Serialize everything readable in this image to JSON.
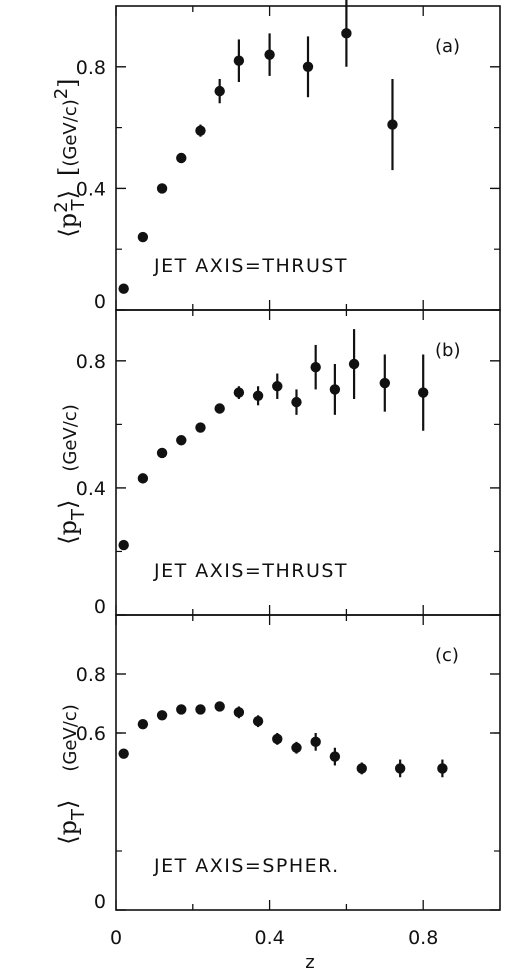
{
  "chart_data": [
    {
      "type": "scatter",
      "panel_label": "(a)",
      "annotation": "JET AXIS=THRUST",
      "ylabel": "⟨p_T²⟩ [(GeV/c)²]",
      "ylabel_parts": {
        "angle_l": "⟨",
        "p": "p",
        "sup": "2",
        "sub": "T",
        "angle_r": "⟩",
        "bracket_l": "[",
        "unit": "(GeV/c)",
        "unit_sup": "2",
        "bracket_r": "]"
      },
      "xlim": [
        0,
        1.0
      ],
      "ylim": [
        0,
        1.0
      ],
      "yticks": [
        0,
        0.4,
        0.8
      ],
      "ytick_labels": [
        "0",
        "0.4",
        "0.8"
      ],
      "series": [
        {
          "points": [
            {
              "x": 0.02,
              "y": 0.07,
              "err": 0
            },
            {
              "x": 0.07,
              "y": 0.24,
              "err": 0
            },
            {
              "x": 0.12,
              "y": 0.4,
              "err": 0
            },
            {
              "x": 0.17,
              "y": 0.5,
              "err": 0
            },
            {
              "x": 0.22,
              "y": 0.59,
              "err": 0.02
            },
            {
              "x": 0.27,
              "y": 0.72,
              "err": 0.04
            },
            {
              "x": 0.32,
              "y": 0.82,
              "err": 0.07
            },
            {
              "x": 0.4,
              "y": 0.84,
              "err": 0.07
            },
            {
              "x": 0.5,
              "y": 0.8,
              "err": 0.1
            },
            {
              "x": 0.6,
              "y": 0.91,
              "err": 0.11
            },
            {
              "x": 0.72,
              "y": 0.61,
              "err": 0.15
            }
          ]
        }
      ]
    },
    {
      "type": "scatter",
      "panel_label": "(b)",
      "annotation": "JET AXIS=THRUST",
      "ylabel": "⟨p_T⟩ (GeV/c)",
      "ylabel_parts": {
        "angle_l": "⟨",
        "p": "p",
        "sub": "T",
        "angle_r": "⟩",
        "unit": "(GeV/c)"
      },
      "xlim": [
        0,
        1.0
      ],
      "ylim": [
        0,
        0.96
      ],
      "yticks": [
        0,
        0.4,
        0.8
      ],
      "ytick_labels": [
        "0",
        "0.4",
        "0.8"
      ],
      "series": [
        {
          "points": [
            {
              "x": 0.02,
              "y": 0.22,
              "err": 0
            },
            {
              "x": 0.07,
              "y": 0.43,
              "err": 0
            },
            {
              "x": 0.12,
              "y": 0.51,
              "err": 0
            },
            {
              "x": 0.17,
              "y": 0.55,
              "err": 0
            },
            {
              "x": 0.22,
              "y": 0.59,
              "err": 0
            },
            {
              "x": 0.27,
              "y": 0.65,
              "err": 0
            },
            {
              "x": 0.32,
              "y": 0.7,
              "err": 0.02
            },
            {
              "x": 0.37,
              "y": 0.69,
              "err": 0.03
            },
            {
              "x": 0.42,
              "y": 0.72,
              "err": 0.04
            },
            {
              "x": 0.47,
              "y": 0.67,
              "err": 0.04
            },
            {
              "x": 0.52,
              "y": 0.78,
              "err": 0.07
            },
            {
              "x": 0.57,
              "y": 0.71,
              "err": 0.08
            },
            {
              "x": 0.62,
              "y": 0.79,
              "err": 0.11
            },
            {
              "x": 0.7,
              "y": 0.73,
              "err": 0.09
            },
            {
              "x": 0.8,
              "y": 0.7,
              "err": 0.12
            }
          ]
        }
      ]
    },
    {
      "type": "scatter",
      "panel_label": "(c)",
      "annotation": "JET AXIS=SPHER.",
      "ylabel": "⟨p_T⟩ (GeV/c)",
      "ylabel_parts": {
        "angle_l": "⟨",
        "p": "p",
        "sub": "T",
        "angle_r": "⟩",
        "unit": "(GeV/c)"
      },
      "xlabel": "z",
      "xlim": [
        0,
        1.0
      ],
      "ylim": [
        0,
        1.0
      ],
      "xticks": [
        0,
        0.4,
        0.8
      ],
      "xtick_labels": [
        "0",
        "0.4",
        "0.8"
      ],
      "yticks": [
        0,
        0.6,
        0.8
      ],
      "ytick_labels": [
        "0",
        "0.6",
        "0.8"
      ],
      "series": [
        {
          "points": [
            {
              "x": 0.02,
              "y": 0.53,
              "err": 0
            },
            {
              "x": 0.07,
              "y": 0.63,
              "err": 0
            },
            {
              "x": 0.12,
              "y": 0.66,
              "err": 0
            },
            {
              "x": 0.17,
              "y": 0.68,
              "err": 0
            },
            {
              "x": 0.22,
              "y": 0.68,
              "err": 0
            },
            {
              "x": 0.27,
              "y": 0.69,
              "err": 0.01
            },
            {
              "x": 0.32,
              "y": 0.67,
              "err": 0.02
            },
            {
              "x": 0.37,
              "y": 0.64,
              "err": 0.02
            },
            {
              "x": 0.42,
              "y": 0.58,
              "err": 0.02
            },
            {
              "x": 0.47,
              "y": 0.55,
              "err": 0.02
            },
            {
              "x": 0.52,
              "y": 0.57,
              "err": 0.03
            },
            {
              "x": 0.57,
              "y": 0.52,
              "err": 0.03
            },
            {
              "x": 0.64,
              "y": 0.48,
              "err": 0.02
            },
            {
              "x": 0.74,
              "y": 0.48,
              "err": 0.03
            },
            {
              "x": 0.85,
              "y": 0.48,
              "err": 0.03
            }
          ]
        }
      ]
    }
  ]
}
